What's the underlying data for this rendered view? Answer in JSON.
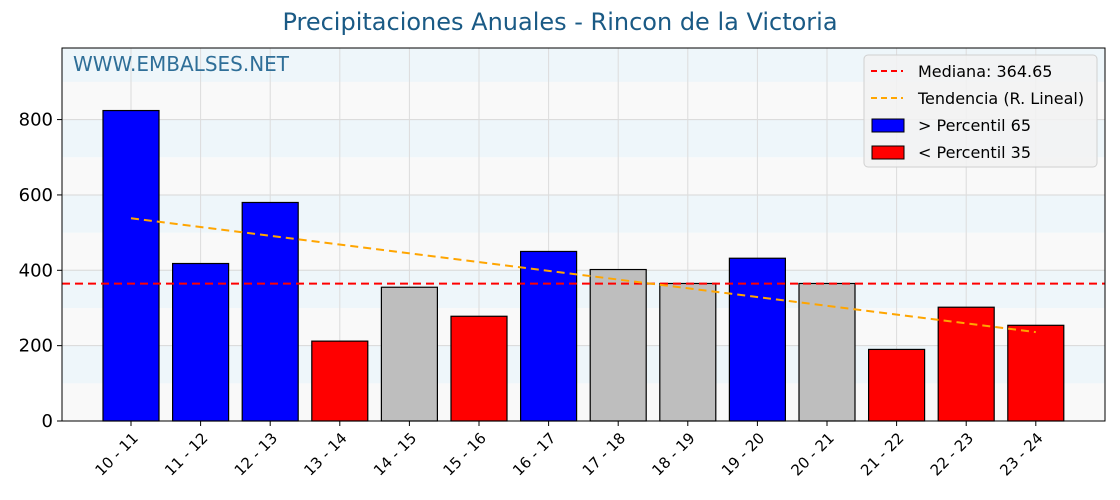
{
  "chart_data": {
    "type": "bar",
    "title": "Precipitaciones Anuales - Rincon de la Victoria",
    "watermark": "WWW.EMBALSES.NET",
    "xlabel": "",
    "ylabel": "",
    "ylim": [
      0,
      990
    ],
    "yticks": [
      0,
      200,
      400,
      600,
      800
    ],
    "grid": true,
    "legend_position": "upper right",
    "categories": [
      "10 - 11",
      "11 - 12",
      "12 - 13",
      "13 - 14",
      "14 - 15",
      "15 - 16",
      "16 - 17",
      "17 - 18",
      "18 - 19",
      "19 - 20",
      "20 - 21",
      "21 - 22",
      "22 - 23",
      "23 - 24"
    ],
    "values": [
      824,
      418,
      580,
      212,
      355,
      278,
      450,
      402,
      365,
      432,
      365,
      190,
      302,
      254
    ],
    "bar_classes": [
      "high",
      "high",
      "high",
      "low",
      "mid",
      "low",
      "high",
      "mid",
      "mid",
      "high",
      "mid",
      "low",
      "low",
      "low"
    ],
    "class_colors": {
      "high": "#0000ff",
      "low": "#ff0000",
      "mid": "#bebebe"
    },
    "median": {
      "label": "Mediana: 364.65",
      "value": 364.65,
      "color": "#ff0000"
    },
    "trend": {
      "label": "Tendencia (R. Lineal)",
      "start": 538,
      "end": 236,
      "color": "#ffa500"
    },
    "legend": [
      {
        "label": "Mediana: 364.65",
        "kind": "dashed-line",
        "color": "#ff0000"
      },
      {
        "label": "Tendencia (R. Lineal)",
        "kind": "dashed-line",
        "color": "#ffa500"
      },
      {
        "label": " > Percentil 65",
        "kind": "patch",
        "color": "#0000ff"
      },
      {
        "label": " < Percentil 35",
        "kind": "patch",
        "color": "#ff0000"
      }
    ]
  }
}
